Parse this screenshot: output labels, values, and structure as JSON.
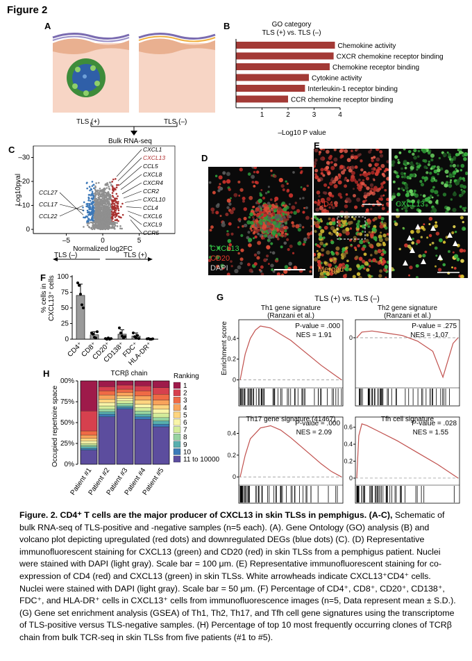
{
  "figure_title": "Figure 2",
  "panelA": {
    "label": "A",
    "tls_pos": "TLS (+)",
    "tls_neg": "TLS (–)",
    "bulk": "Bulk RNA-seq"
  },
  "panelB": {
    "label": "B",
    "title_line1": "GO category",
    "title_line2": "TLS (+) vs. TLS (–)",
    "xlabel": "–Log10 P value",
    "ticks": [
      "1",
      "2",
      "3",
      "4"
    ]
  },
  "panelC": {
    "label": "C",
    "ylabel": "Log10pval",
    "xlabel": "Normalized log2FC",
    "yticks": [
      "–30",
      "–20",
      "–10",
      "0"
    ],
    "xticks": [
      "–5",
      "0",
      "5"
    ],
    "arrow_left": "TLS (–)",
    "arrow_right": "TLS (+)",
    "genes_right": [
      "CXCL1",
      "CXCL13",
      "CCL5",
      "CXCL8",
      "CXCR4",
      "CCR2",
      "CXCL10",
      "CCL4",
      "CXCL6",
      "CXCL9",
      "CCR5"
    ],
    "genes_left": [
      "CCL27",
      "CCL17",
      "CCL22"
    ]
  },
  "panelD": {
    "label": "D",
    "legend": [
      "CXCL13",
      "CD20",
      "DAPI"
    ]
  },
  "panelE": {
    "label": "E",
    "tiles": [
      "CD4",
      "CXCL13",
      "Merged"
    ]
  },
  "panelF": {
    "label": "F",
    "ylabel_line1": "% cells in",
    "ylabel_line2": "CXCL13⁺ cells",
    "yticks": [
      "0",
      "25",
      "50",
      "75",
      "100"
    ]
  },
  "panelG": {
    "label": "G",
    "header": "TLS (+) vs. TLS (–)",
    "ylabel": "Enrichment score",
    "plots": [
      {
        "title1": "Th1 gene signature",
        "title2": "(Ranzani et al.)",
        "pval": "P-value = .000",
        "nes": "NES = 1.91",
        "yticks": [
          "0",
          "0.2",
          "0.4"
        ]
      },
      {
        "title1": "Th2 gene signature",
        "title2": "(Ranzani et al.)",
        "pval": "P-value = .275",
        "nes": "NES = -1.07",
        "yticks": [
          "0"
        ]
      },
      {
        "title1": "Th17 gene signature (41467)",
        "title2": "",
        "pval": "P-value = .000",
        "nes": "NES = 2.09",
        "yticks": [
          "0",
          "0.2",
          "0.4"
        ]
      },
      {
        "title1": "Tfh cell signature",
        "title2": "",
        "pval": "P-value = .028",
        "nes": "NES = 1.55",
        "yticks": [
          "0",
          "0.2",
          "0.4",
          "0.6"
        ]
      }
    ]
  },
  "panelH": {
    "label": "H",
    "title": "TCRβ chain",
    "ylabel": "Occupied repertoire space",
    "yticks": [
      "0%",
      "25%",
      "50%",
      "75%",
      "100%"
    ],
    "legend_title": "Ranking",
    "legend": [
      "1",
      "2",
      "3",
      "4",
      "5",
      "6",
      "7",
      "8",
      "9",
      "10",
      "11 to 10000"
    ],
    "colors": [
      "#9e1a4a",
      "#d6404e",
      "#ef6a45",
      "#f8a35b",
      "#fdd47f",
      "#f8f4a8",
      "#d3ec9a",
      "#96d3a0",
      "#57aeae",
      "#3b7bb8",
      "#5c4d9e"
    ]
  },
  "caption": {
    "bold": "Figure. 2. CD4⁺ T cells are the major producer of CXCL13 in skin TLSs in pemphigus.",
    "bold_refs": "(A-C),",
    "body": "Schematic of bulk RNA-seq of TLS-positive and -negative samples (n=5 each). (A). Gene Ontology (GO) analysis (B) and volcano plot depicting upregulated (red dots) and downregulated DEGs (blue dots) (C). (D) Representative immunofluorescent staining for CXCL13 (green) and CD20 (red) in skin TLSs from a pemphigus patient. Nuclei were stained with DAPI (light gray). Scale bar = 100 μm. (E) Representative immunofluorescent staining for co-expression of CD4 (red) and CXCL13 (green) in skin TLSs. White arrowheads indicate CXCL13⁺CD4⁺ cells. Nuclei were stained with DAPI (light gray). Scale bar = 50 μm. (F) Percentage of CD4⁺, CD8⁺, CD20⁺, CD138⁺, FDC⁺, and HLA-DR⁺ cells in CXCL13⁺ cells from immunofluorescence images (n=5, Data represent mean ± S.D.). (G) Gene set enrichment analysis (GSEA) of Th1, Th2, Th17, and Tfh cell gene signatures using the transcriptome of TLS-positive versus TLS-negative samples. (H) Percentage of top 10 most frequently occurring clones of TCRβ chain from bulk TCR-seq in skin TLSs from five patients (#1 to #5)."
  },
  "chart_data": [
    {
      "panel": "B",
      "type": "bar",
      "orientation": "horizontal",
      "categories": [
        "Chemokine activity",
        "CXCR chemokine receptor binding",
        "Chemokine receptor binding",
        "Cytokine activity",
        "Interleukin-1 receptor binding",
        "CCR chemokine receptor binding"
      ],
      "values": [
        3.8,
        3.75,
        3.6,
        2.8,
        2.65,
        2.0
      ],
      "xlim": [
        0,
        4
      ],
      "color": "#a33a36"
    },
    {
      "panel": "F",
      "type": "bar",
      "categories": [
        "CD4⁺",
        "CD8⁺",
        "CD20⁺",
        "CD138⁺",
        "FDC⁺",
        "HLA-DR⁺"
      ],
      "values": [
        70,
        7,
        1,
        8,
        5,
        0.5
      ],
      "errors": [
        18,
        5,
        1,
        7,
        5,
        0.5
      ],
      "points": [
        [
          90,
          86,
          72,
          55,
          50
        ],
        [
          10,
          8,
          3,
          2,
          12
        ],
        [
          1,
          0,
          2,
          0,
          1
        ],
        [
          18,
          10,
          5,
          2,
          4
        ],
        [
          10,
          4,
          2,
          6,
          1
        ],
        [
          0.5,
          1,
          0,
          0,
          0.5
        ]
      ],
      "ylim": [
        0,
        100
      ]
    },
    {
      "panel": "H",
      "type": "bar",
      "stacked": true,
      "categories": [
        "Patient #1",
        "Patient #2",
        "Patient #3",
        "Patient #4",
        "Patient #5"
      ],
      "series": [
        {
          "name": "1",
          "values": [
            36,
            7,
            5,
            6,
            8
          ]
        },
        {
          "name": "2",
          "values": [
            24,
            5,
            5,
            6,
            8
          ]
        },
        {
          "name": "3",
          "values": [
            5,
            5,
            4,
            6,
            7
          ]
        },
        {
          "name": "4",
          "values": [
            4,
            5,
            4,
            5,
            6
          ]
        },
        {
          "name": "5",
          "values": [
            3,
            4,
            3,
            5,
            5
          ]
        },
        {
          "name": "6",
          "values": [
            3,
            4,
            3,
            4,
            5
          ]
        },
        {
          "name": "7",
          "values": [
            2,
            4,
            3,
            4,
            5
          ]
        },
        {
          "name": "8",
          "values": [
            2,
            3,
            3,
            4,
            4
          ]
        },
        {
          "name": "9",
          "values": [
            2,
            3,
            2,
            3,
            4
          ]
        },
        {
          "name": "10",
          "values": [
            2,
            3,
            2,
            3,
            3
          ]
        },
        {
          "name": "11 to 10000",
          "values": [
            17,
            57,
            66,
            54,
            45
          ]
        }
      ],
      "ylim": [
        0,
        100
      ]
    },
    {
      "panel": "C",
      "type": "scatter",
      "xlim": [
        -8,
        8
      ],
      "ylim": [
        -34,
        0
      ],
      "xticks": [
        -5,
        0,
        5
      ],
      "yticks": [
        -30,
        -20,
        -10,
        0
      ]
    },
    {
      "panel": "G",
      "type": "line",
      "series": [
        {
          "name": "Th1 gene signature",
          "x": [
            0,
            0.05,
            0.1,
            0.15,
            0.2,
            0.3,
            0.4,
            0.5,
            0.6,
            0.7,
            0.8,
            0.9,
            1.0
          ],
          "y": [
            0,
            0.25,
            0.4,
            0.48,
            0.52,
            0.5,
            0.44,
            0.38,
            0.3,
            0.22,
            0.14,
            0.07,
            0
          ]
        },
        {
          "name": "Th2 gene signature",
          "x": [
            0,
            0.05,
            0.15,
            0.3,
            0.45,
            0.6,
            0.75,
            0.85,
            0.9,
            0.95,
            1.0
          ],
          "y": [
            0,
            0.05,
            0.06,
            0.04,
            0.02,
            -0.03,
            -0.12,
            -0.35,
            -0.2,
            -0.05,
            0
          ]
        },
        {
          "name": "Th17 gene signature (41467)",
          "x": [
            0,
            0.05,
            0.1,
            0.2,
            0.3,
            0.4,
            0.5,
            0.6,
            0.7,
            0.8,
            0.9,
            1.0
          ],
          "y": [
            0,
            0.2,
            0.35,
            0.45,
            0.47,
            0.43,
            0.36,
            0.28,
            0.2,
            0.12,
            0.05,
            0
          ]
        },
        {
          "name": "Tfh cell signature",
          "x": [
            0,
            0.02,
            0.05,
            0.1,
            0.2,
            0.4,
            0.6,
            0.8,
            0.95,
            1.0
          ],
          "y": [
            0,
            0.5,
            0.64,
            0.62,
            0.56,
            0.44,
            0.3,
            0.16,
            0.04,
            0
          ]
        }
      ]
    }
  ]
}
